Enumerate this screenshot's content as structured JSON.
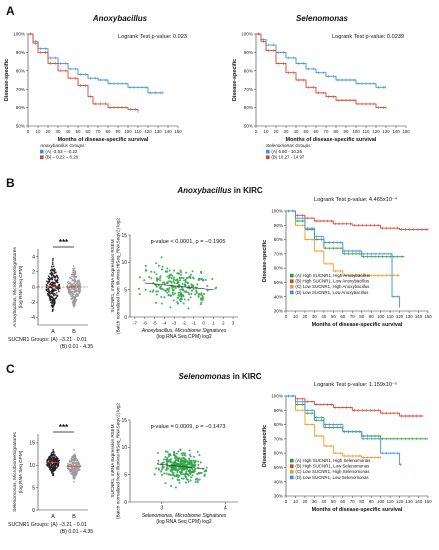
{
  "panels": {
    "A": {
      "letter": "A",
      "left": {
        "title": "Anoxybacillus",
        "test_text": "Logrank Test p-value: 0.023",
        "ylabel": "Disease-specific",
        "xlabel": "Months of disease-specific survival",
        "legend_title": "Anoxybacillus Groups:",
        "legend": [
          "(A) -3.53 – -0.22",
          "(B) – 0.22 – 6.26"
        ],
        "colors": [
          "#3b8ee0",
          "#d9432c"
        ]
      },
      "right": {
        "title": "Selenomonas",
        "test_text": "Logrank Test p-value: 0.0239",
        "ylabel": "Disease-specific",
        "xlabel": "Months of disease-specific survival",
        "legend_title": "Selenomonas Groups:",
        "legend": [
          "(A) 6.80 - 10.26",
          "(B) 10.27 - 14.97"
        ],
        "colors": [
          "#3b8ee0",
          "#d9432c"
        ]
      }
    },
    "B": {
      "letter": "B",
      "title_italic": "Anoxybacillus",
      "title_rest": " in KIRC",
      "scatter_ylabel": [
        "Anoxybacillus, MicrobiomeSignatures",
        "(log RNA Seq CPM)"
      ],
      "group_label": "SUCNR1 Groups: (A) −3.21 - 0.01",
      "group_label2": "(B) 0.01 - 4.35",
      "sig": "***",
      "corr_text": "p-value < 0.0001, ρ = −0.1905",
      "corr_ylabel": [
        "SUCNR1, mRNA Expression RSEM",
        "(Batch normalized from Illumina HiSeq_RNASeqV2) log2"
      ],
      "corr_xlabel": [
        "Anoxybacillus, Microbiome Signatures",
        "(log RNA Seq CPM) log2"
      ],
      "km_test": "Logrank Test p-value: 4.465x10⁻⁴",
      "km_ylabel": "Disease-specific",
      "km_xlabel": "Months of disease-specific survival",
      "km_legend": [
        "(A) High SUCNR1, High Anoxybacillus",
        "(B) High SUCNR1, Low Anoxybacillus",
        "(C) Low SUCNR1, High Anoxybacillus",
        "(D) Low SUCNR1, Low Anoxybacillus"
      ],
      "km_colors": [
        "#2e9b3e",
        "#d9432c",
        "#f29b24",
        "#3b8ee0"
      ]
    },
    "C": {
      "letter": "C",
      "title_italic": "Selenomonas",
      "title_rest": " in KIRC",
      "scatter_ylabel": [
        "Selenomonas, MicrobiomeSignatures",
        "(log RNA Seq CPM)"
      ],
      "group_label": "SUCNR1 Groups: (A) −3.21 - 0.01",
      "group_label2": "(B) 0.01 - 4.35",
      "sig": "***",
      "corr_text": "p-value = 0.0009, ρ = −0.1473",
      "corr_ylabel": [
        "SUCNR1, mRNA Expression RSEM",
        "(Batch normalized from Illumina HiSeq_RNASeqV2) log2"
      ],
      "corr_xlabel": [
        "Selenomonas, Microbiome Signatures",
        "(log RNA Seq CPM) log2"
      ],
      "km_test": "Logrank Test p-value: 1.159x10⁻⁵",
      "km_ylabel": "Disease-specific",
      "km_xlabel": "Months of disease-specific survival",
      "km_legend": [
        "(A) High SUCNR1, High Selenomonas",
        "(B) High SUCNR1, Low Selenomonas",
        "(C) Low SUCNR1, High Selenomonas",
        "(D) Low SUCNR1, Low Selenomonas"
      ],
      "km_colors": [
        "#2e9b3e",
        "#d9432c",
        "#f29b24",
        "#3b8ee0"
      ]
    }
  },
  "chart_data": [
    {
      "type": "line",
      "panel": "A-left",
      "title": "Anoxybacillus",
      "xlabel": "Months of disease-specific survival",
      "ylabel": "Disease-specific",
      "xlim": [
        0,
        150
      ],
      "ylim": [
        0.5,
        1.0
      ],
      "xticks": [
        0,
        10,
        20,
        30,
        40,
        50,
        60,
        70,
        80,
        90,
        100,
        110,
        120,
        130,
        140,
        150
      ],
      "yticks": [
        "100%",
        "90%",
        "80%",
        "70%",
        "60%",
        "50%"
      ],
      "series": [
        {
          "name": "(A) -3.53 – -0.22",
          "x": [
            0,
            5,
            10,
            20,
            30,
            40,
            50,
            60,
            70,
            80,
            100,
            120,
            135
          ],
          "y": [
            100,
            96,
            92,
            87,
            84,
            81,
            78,
            76,
            75,
            73,
            71,
            68,
            68
          ]
        },
        {
          "name": "(B) – 0.22 – 6.26",
          "x": [
            0,
            5,
            10,
            20,
            30,
            40,
            50,
            60,
            65,
            80,
            100,
            110
          ],
          "y": [
            100,
            95,
            90,
            84,
            80,
            76,
            72,
            66,
            62,
            60,
            59,
            58
          ]
        }
      ]
    },
    {
      "type": "line",
      "panel": "A-right",
      "title": "Selenomonas",
      "xlabel": "Months of disease-specific survival",
      "ylabel": "Disease-specific",
      "xlim": [
        0,
        150
      ],
      "ylim": [
        0.5,
        1.0
      ],
      "xticks": [
        0,
        10,
        20,
        30,
        40,
        50,
        60,
        70,
        80,
        90,
        100,
        110,
        120,
        130,
        140,
        150
      ],
      "yticks": [
        "100%",
        "90%",
        "80%",
        "70%",
        "60%",
        "50%"
      ],
      "series": [
        {
          "name": "(A) 6.80 - 10.26",
          "x": [
            0,
            5,
            10,
            20,
            30,
            40,
            50,
            60,
            70,
            80,
            100,
            120,
            130
          ],
          "y": [
            100,
            97,
            94,
            90,
            87,
            84,
            81,
            79,
            77,
            75,
            73,
            71,
            71
          ]
        },
        {
          "name": "(B) 10.27 - 14.97",
          "x": [
            0,
            5,
            10,
            20,
            30,
            40,
            50,
            60,
            70,
            80,
            100,
            120,
            130
          ],
          "y": [
            100,
            96,
            91,
            84,
            79,
            75,
            71,
            68,
            66,
            64,
            62,
            60,
            60
          ]
        }
      ]
    },
    {
      "type": "scatter",
      "panel": "B-left",
      "categories": [
        "A",
        "B"
      ],
      "yticks": [
        4,
        2,
        0,
        -2,
        -4
      ],
      "ylim": [
        -5,
        5
      ]
    },
    {
      "type": "scatter",
      "panel": "B-mid",
      "xticks": [
        -7,
        -6,
        -5,
        -4,
        -3,
        -2,
        -1,
        0,
        1,
        2,
        3
      ],
      "yticks": [
        15,
        10,
        5,
        0
      ],
      "xlim": [
        -7.5,
        3.5
      ],
      "ylim": [
        0,
        15
      ]
    },
    {
      "type": "line",
      "panel": "B-right",
      "xlim": [
        0,
        150
      ],
      "ylim": [
        0,
        1.0
      ],
      "xticks": [
        0,
        10,
        20,
        30,
        40,
        50,
        60,
        70,
        80,
        90,
        100,
        110,
        120,
        130,
        140,
        150
      ],
      "yticks": [
        "100%",
        "90%",
        "80%",
        "70%",
        "60%",
        "50%",
        "40%",
        "30%"
      ],
      "series": [
        {
          "name": "(A) High SUCNR1, High Anoxybacillus",
          "x": [
            0,
            10,
            20,
            30,
            40,
            60,
            80,
            100,
            120
          ],
          "y": [
            100,
            93,
            87,
            80,
            74,
            70,
            68,
            68,
            68
          ]
        },
        {
          "name": "(B) High SUCNR1, Low Anoxybacillus",
          "x": [
            0,
            10,
            20,
            30,
            50,
            70,
            100,
            120,
            150
          ],
          "y": [
            100,
            97,
            95,
            93,
            91,
            90,
            88,
            87,
            87
          ]
        },
        {
          "name": "(C) Low SUCNR1, High Anoxybacillus",
          "x": [
            0,
            10,
            20,
            30,
            40,
            50,
            60,
            80,
            120
          ],
          "y": [
            100,
            90,
            80,
            72,
            63,
            58,
            55,
            55,
            55
          ]
        },
        {
          "name": "(D) Low SUCNR1, Low Anoxybacillus",
          "x": [
            0,
            10,
            20,
            30,
            40,
            60,
            80,
            110,
            112,
            120
          ],
          "y": [
            100,
            95,
            88,
            82,
            78,
            72,
            70,
            70,
            40,
            33
          ]
        }
      ]
    },
    {
      "type": "scatter",
      "panel": "C-left",
      "categories": [
        "A",
        "B"
      ],
      "yticks": [
        15,
        10,
        5,
        0
      ],
      "ylim": [
        0,
        17
      ]
    },
    {
      "type": "scatter",
      "panel": "C-mid",
      "xticks": [
        3,
        4
      ],
      "yticks": [
        15,
        10,
        5,
        0
      ],
      "xlim": [
        2.5,
        4.2
      ],
      "ylim": [
        0,
        15
      ]
    },
    {
      "type": "line",
      "panel": "C-right",
      "xlim": [
        0,
        150
      ],
      "ylim": [
        0,
        1.0
      ],
      "xticks": [
        0,
        10,
        20,
        30,
        40,
        50,
        60,
        70,
        80,
        90,
        100,
        110,
        120,
        130,
        140,
        150
      ],
      "yticks": [
        "100%",
        "90%",
        "80%",
        "70%",
        "60%",
        "50%",
        "40%",
        "30%"
      ],
      "series": [
        {
          "name": "(A) High SUCNR1, High Selenomonas",
          "x": [
            0,
            10,
            20,
            30,
            40,
            60,
            80,
            100,
            120,
            140
          ],
          "y": [
            100,
            94,
            88,
            83,
            78,
            75,
            72,
            70,
            70,
            70
          ]
        },
        {
          "name": "(B) High SUCNR1, Low Selenomonas",
          "x": [
            0,
            10,
            20,
            30,
            50,
            70,
            100,
            120,
            140
          ],
          "y": [
            100,
            98,
            96,
            94,
            92,
            90,
            88,
            86,
            86
          ]
        },
        {
          "name": "(C) Low SUCNR1, High Selenomonas",
          "x": [
            0,
            10,
            20,
            30,
            40,
            50,
            60,
            80,
            100
          ],
          "y": [
            100,
            90,
            80,
            72,
            65,
            60,
            58,
            57,
            57
          ]
        },
        {
          "name": "(D) Low SUCNR1, Low Selenomonas",
          "x": [
            0,
            10,
            20,
            30,
            40,
            60,
            80,
            100,
            120
          ],
          "y": [
            100,
            96,
            90,
            85,
            80,
            75,
            70,
            60,
            52
          ]
        }
      ]
    }
  ]
}
